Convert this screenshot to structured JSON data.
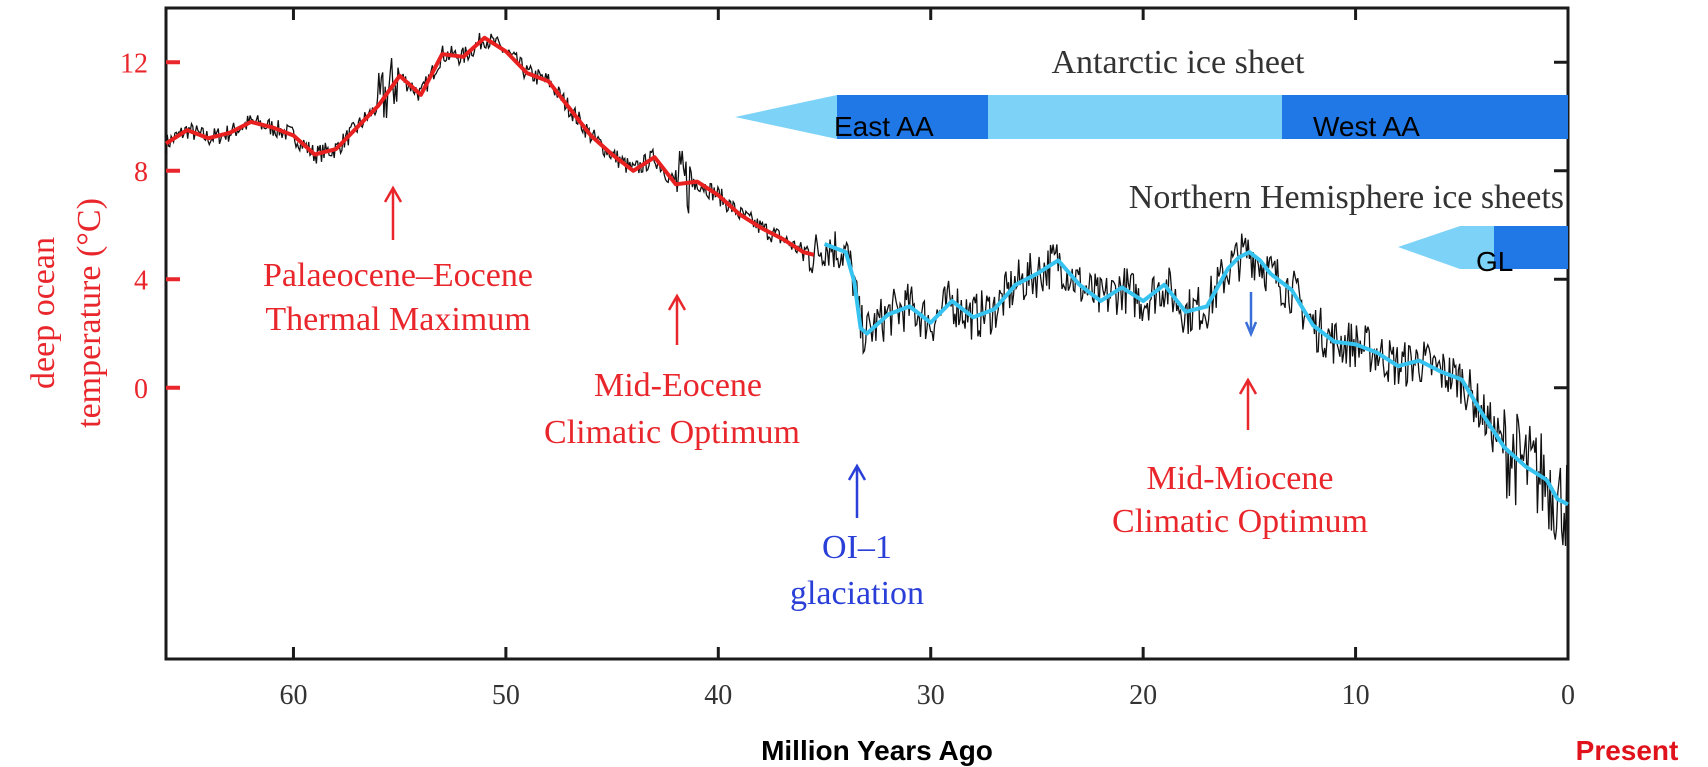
{
  "chart_data": {
    "type": "line",
    "ylabel_line1": "deep ocean",
    "ylabel_line2": "temperature (°C)",
    "xlabel": "Million Years Ago",
    "present_label": "Present",
    "xlim": [
      66,
      0
    ],
    "ylim": [
      -10,
      14
    ],
    "x_ticks": [
      "60",
      "50",
      "40",
      "30",
      "20",
      "10",
      "0"
    ],
    "y_ticks": [
      "12",
      "8",
      "4",
      "0"
    ],
    "series": [
      {
        "color": "#e8201f",
        "x": [
          66,
          65,
          64,
          63,
          62,
          61,
          60,
          59,
          58,
          57,
          56,
          55,
          54,
          53,
          52,
          51,
          50,
          49,
          48,
          47,
          46,
          45,
          44,
          43,
          42,
          41,
          40,
          39,
          38,
          37,
          36,
          35.5
        ],
        "y": [
          9.0,
          9.5,
          9.2,
          9.4,
          9.8,
          9.6,
          9.3,
          8.6,
          8.8,
          9.6,
          10.4,
          11.5,
          10.8,
          12.3,
          12.2,
          12.9,
          12.4,
          11.6,
          11.3,
          10.3,
          9.3,
          8.6,
          8.0,
          8.5,
          7.5,
          7.6,
          7.1,
          6.4,
          5.9,
          5.5,
          5.0,
          4.9
        ]
      },
      {
        "color": "#37c3f0",
        "x": [
          35,
          34,
          33.6,
          33.3,
          33,
          32,
          31,
          30,
          29,
          28,
          27,
          26,
          25,
          24,
          23,
          22,
          21,
          20,
          19,
          18,
          17,
          16,
          15.5,
          15,
          14.5,
          14,
          13,
          12,
          11,
          10,
          9,
          8,
          7,
          6,
          5,
          4,
          3,
          2,
          1,
          0.5,
          0
        ],
        "y": [
          5.3,
          5.0,
          3.9,
          2.2,
          2.0,
          2.7,
          3.0,
          2.4,
          3.2,
          2.6,
          2.9,
          3.8,
          4.2,
          4.7,
          3.8,
          3.2,
          3.7,
          3.2,
          3.8,
          2.8,
          3.0,
          4.4,
          4.8,
          5.0,
          4.7,
          4.2,
          3.6,
          2.3,
          1.7,
          1.6,
          1.3,
          0.8,
          1.0,
          0.6,
          0.3,
          -1.0,
          -2.2,
          -2.9,
          -3.4,
          -4.1,
          -4.3
        ]
      }
    ],
    "annotations": [
      {
        "lines": [
          "Palaeocene–Eocene",
          "Thermal Maximum"
        ],
        "color": "#e8262b"
      },
      {
        "lines": [
          "Mid-Eocene",
          "Climatic Optimum"
        ],
        "color": "#e8262b"
      },
      {
        "lines": [
          "OI–1",
          "glaciation"
        ],
        "color": "#2a3fd8"
      },
      {
        "lines": [
          "Mid-Miocene",
          "Climatic Optimum"
        ],
        "color": "#e8262b"
      }
    ],
    "ice_sheets": {
      "antarctic_title": "Antarctic ice sheet",
      "east_label": "East AA",
      "west_label": "West AA",
      "northern_title": "Northern Hemisphere ice sheets",
      "gl_label": "GL",
      "light_color": "#7dd3f7",
      "dark_color": "#1f78e6"
    }
  }
}
